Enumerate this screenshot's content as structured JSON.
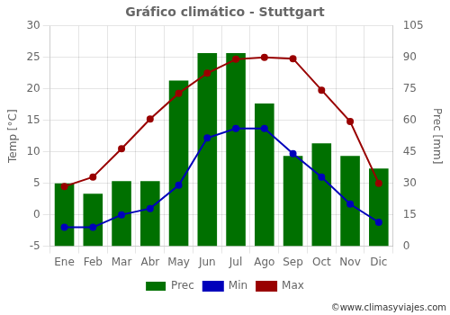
{
  "chart_data": {
    "type": "bar",
    "title": "Gráfico climático - Stuttgart",
    "categories": [
      "Ene",
      "Feb",
      "Mar",
      "Abr",
      "May",
      "Jun",
      "Jul",
      "Ago",
      "Sep",
      "Oct",
      "Nov",
      "Dic"
    ],
    "series": [
      {
        "name": "Prec",
        "type": "bar",
        "axis": "y2",
        "color": "#007000",
        "values": [
          30,
          25,
          31,
          31,
          79,
          92,
          92,
          68,
          43,
          49,
          43,
          37
        ]
      },
      {
        "name": "Min",
        "type": "line",
        "color": "#0000bb",
        "marker": "circle",
        "values": [
          -2.0,
          -2.0,
          0.0,
          1.0,
          4.7,
          12.2,
          13.7,
          13.7,
          9.7,
          6.0,
          1.7,
          -1.2
        ]
      },
      {
        "name": "Max",
        "type": "line",
        "color": "#990000",
        "marker": "circle",
        "values": [
          4.5,
          6.0,
          10.5,
          15.2,
          19.3,
          22.5,
          24.7,
          25.0,
          24.8,
          19.8,
          14.8,
          5.0
        ]
      }
    ],
    "ylabel": "Temp [°C]",
    "y2label": "Prec [mm]",
    "ylim": [
      -5,
      30
    ],
    "yticks": [
      -5,
      0,
      5,
      10,
      15,
      20,
      25,
      30
    ],
    "y2lim": [
      0,
      105
    ],
    "y2ticks": [
      0,
      15,
      30,
      45,
      60,
      75,
      90,
      105
    ],
    "grid": true,
    "legend": "bottom",
    "annotations": [
      "©www.climasyviajes.com"
    ]
  }
}
